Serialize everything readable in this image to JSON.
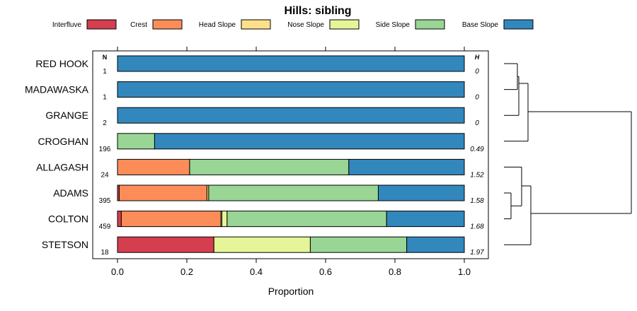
{
  "chart_data": {
    "type": "bar",
    "subtype": "stacked-horizontal-proportion",
    "title": "Hills: sibling",
    "xlabel": "Proportion",
    "ylabel": "",
    "xlim": [
      0,
      1
    ],
    "x_ticks": [
      0.0,
      0.2,
      0.4,
      0.6,
      0.8,
      1.0
    ],
    "x_tick_labels": [
      "0.0",
      "0.2",
      "0.4",
      "0.6",
      "0.8",
      "1.0"
    ],
    "grid": false,
    "legend_position": "top",
    "n_header": "N",
    "h_header": "H",
    "series": [
      {
        "name": "Interfluve",
        "color": "#D53E4F"
      },
      {
        "name": "Crest",
        "color": "#FC8D59"
      },
      {
        "name": "Head Slope",
        "color": "#FEE08B"
      },
      {
        "name": "Nose Slope",
        "color": "#E6F598"
      },
      {
        "name": "Side Slope",
        "color": "#99D594"
      },
      {
        "name": "Base Slope",
        "color": "#3288BD"
      }
    ],
    "categories": [
      "RED HOOK",
      "MADAWASKA",
      "GRANGE",
      "CROGHAN",
      "ALLAGASH",
      "ADAMS",
      "COLTON",
      "STETSON"
    ],
    "rows": [
      {
        "label": "RED HOOK",
        "n": "1",
        "h": "0",
        "values": [
          0,
          0,
          0,
          0,
          0,
          1.0
        ]
      },
      {
        "label": "MADAWASKA",
        "n": "1",
        "h": "0",
        "values": [
          0,
          0,
          0,
          0,
          0,
          1.0
        ]
      },
      {
        "label": "GRANGE",
        "n": "2",
        "h": "0",
        "values": [
          0,
          0,
          0,
          0,
          0,
          1.0
        ]
      },
      {
        "label": "CROGHAN",
        "n": "196",
        "h": "0.49",
        "values": [
          0,
          0,
          0,
          0,
          0.107,
          0.893
        ]
      },
      {
        "label": "ALLAGASH",
        "n": "24",
        "h": "1.52",
        "values": [
          0,
          0.208,
          0,
          0,
          0.459,
          0.333
        ]
      },
      {
        "label": "ADAMS",
        "n": "395",
        "h": "1.58",
        "values": [
          0.005,
          0.253,
          0.005,
          0,
          0.489,
          0.248
        ]
      },
      {
        "label": "COLTON",
        "n": "459",
        "h": "1.68",
        "values": [
          0.011,
          0.287,
          0.003,
          0.015,
          0.46,
          0.224
        ]
      },
      {
        "label": "STETSON",
        "n": "18",
        "h": "1.97",
        "values": [
          0.278,
          0,
          0,
          0.278,
          0.278,
          0.166
        ]
      }
    ],
    "dendrogram_merge_order": [
      [
        "RED HOOK",
        "MADAWASKA"
      ],
      [
        "RED HOOK+MADAWASKA",
        "GRANGE"
      ],
      [
        "ADAMS",
        "COLTON"
      ],
      [
        "ADAMS+COLTON",
        "ALLAGASH"
      ],
      [
        "RED HOOK+MADAWASKA+GRANGE",
        "CROGHAN"
      ],
      [
        "ALLAGASH+ADAMS+COLTON",
        "STETSON"
      ],
      [
        "upper cluster",
        "lower cluster"
      ]
    ]
  }
}
